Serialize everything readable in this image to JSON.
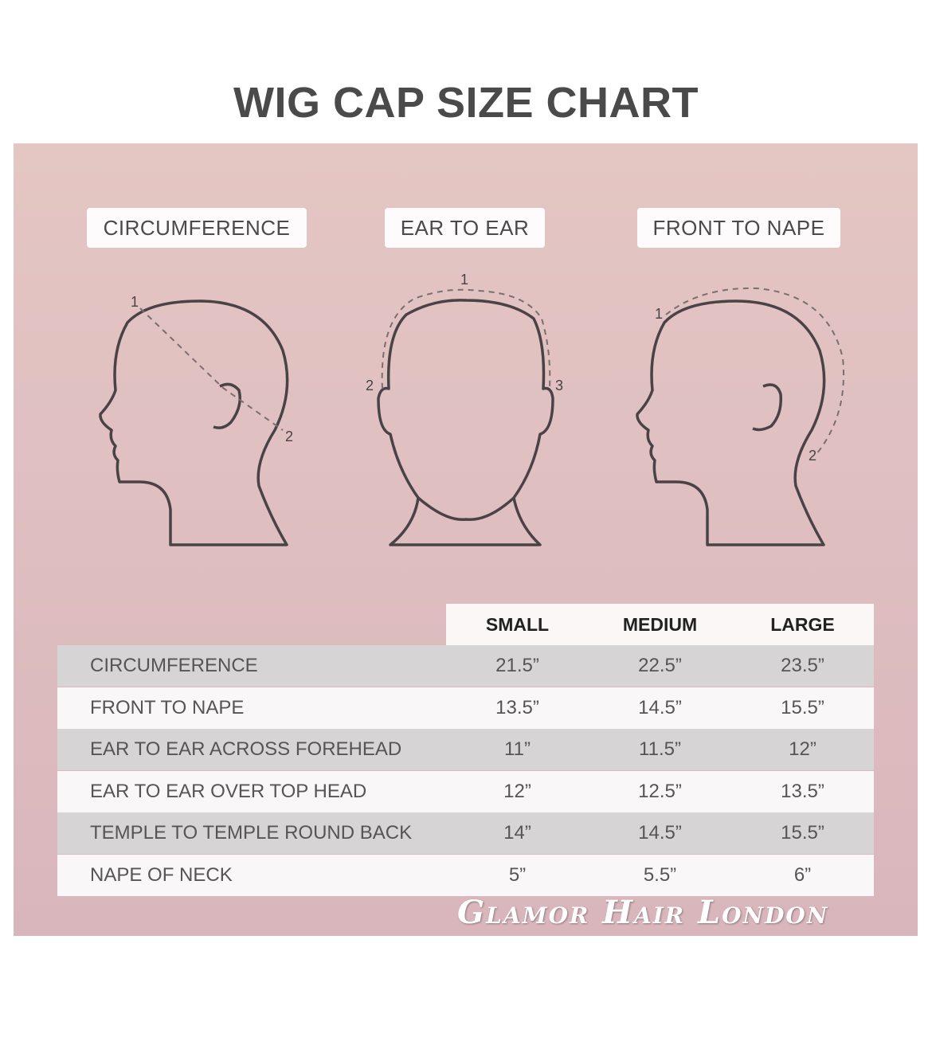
{
  "title": "WIG CAP SIZE CHART",
  "diagrams": [
    {
      "label": "CIRCUMFERENCE",
      "points": [
        "1",
        "2"
      ]
    },
    {
      "label": "EAR TO EAR",
      "points": [
        "1",
        "2",
        "3"
      ]
    },
    {
      "label": "FRONT TO NAPE",
      "points": [
        "1",
        "2"
      ]
    }
  ],
  "table": {
    "columns": [
      "SMALL",
      "MEDIUM",
      "LARGE"
    ],
    "rows": [
      {
        "name": "CIRCUMFERENCE",
        "values": [
          "21.5”",
          "22.5”",
          "23.5”"
        ]
      },
      {
        "name": "FRONT TO NAPE",
        "values": [
          "13.5”",
          "14.5”",
          "15.5”"
        ]
      },
      {
        "name": "EAR TO EAR ACROSS FOREHEAD",
        "values": [
          "11”",
          "11.5”",
          "12”"
        ]
      },
      {
        "name": "EAR TO EAR OVER TOP HEAD",
        "values": [
          "12”",
          "12.5”",
          "13.5”"
        ]
      },
      {
        "name": "TEMPLE TO TEMPLE ROUND BACK",
        "values": [
          "14”",
          "14.5”",
          "15.5”"
        ]
      },
      {
        "name": "NAPE OF NECK",
        "values": [
          "5”",
          "5.5”",
          "6”"
        ]
      }
    ]
  },
  "brand": "Glamor Hair London",
  "colors": {
    "panel_top": "#e4c6c3",
    "panel_bottom": "#d9b6bc",
    "row_gray": "#d7d4d5",
    "row_white": "#faf7f8",
    "outline": "#4a4345"
  }
}
